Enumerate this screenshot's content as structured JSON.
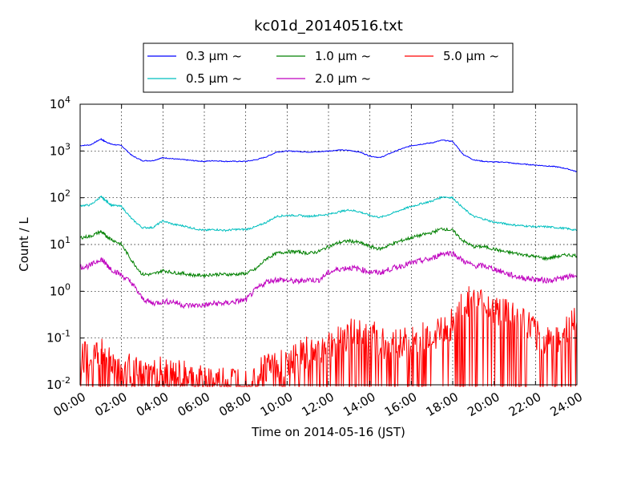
{
  "chart_data": {
    "type": "line",
    "title": "kc01d_20140516.txt",
    "xlabel": "Time on 2014-05-16 (JST)",
    "ylabel": "Count / L",
    "xlim": [
      0,
      24
    ],
    "ylim": [
      0.01,
      10000
    ],
    "yscale": "log",
    "grid": true,
    "legend_position": "top-center",
    "x_tick_labels": [
      "00:00",
      "02:00",
      "04:00",
      "06:00",
      "08:00",
      "10:00",
      "12:00",
      "14:00",
      "16:00",
      "18:00",
      "20:00",
      "22:00",
      "24:00"
    ],
    "y_ticks": [
      {
        "base": "10",
        "exp": "-2"
      },
      {
        "base": "10",
        "exp": "-1"
      },
      {
        "base": "10",
        "exp": "0"
      },
      {
        "base": "10",
        "exp": "1"
      },
      {
        "base": "10",
        "exp": "2"
      },
      {
        "base": "10",
        "exp": "3"
      },
      {
        "base": "10",
        "exp": "4"
      }
    ],
    "x": [
      0,
      0.5,
      1,
      1.2,
      1.5,
      2,
      2.5,
      3,
      3.5,
      4,
      4.5,
      5,
      5.5,
      6,
      6.5,
      7,
      7.5,
      8,
      8.5,
      9,
      9.5,
      10,
      10.5,
      11,
      11.5,
      12,
      12.5,
      13,
      13.5,
      14,
      14.5,
      15,
      15.5,
      16,
      16.5,
      17,
      17.5,
      18,
      18.5,
      19,
      19.5,
      20,
      20.5,
      21,
      21.5,
      22,
      22.5,
      23,
      23.5,
      24
    ],
    "series": [
      {
        "name": "0.3 μm ~",
        "color": "#0000ff",
        "values": [
          1300,
          1350,
          1800,
          1600,
          1400,
          1300,
          800,
          620,
          620,
          720,
          680,
          650,
          620,
          600,
          620,
          600,
          600,
          600,
          650,
          750,
          950,
          1000,
          980,
          950,
          960,
          1000,
          1050,
          1030,
          950,
          780,
          720,
          900,
          1100,
          1300,
          1400,
          1500,
          1700,
          1600,
          850,
          650,
          600,
          580,
          580,
          540,
          520,
          500,
          480,
          460,
          420,
          360
        ]
      },
      {
        "name": "0.5 μm ~",
        "color": "#00bfbf",
        "values": [
          68,
          70,
          105,
          90,
          70,
          65,
          35,
          23,
          23,
          32,
          27,
          25,
          22,
          20,
          21,
          20,
          21,
          21,
          24,
          30,
          40,
          42,
          42,
          40,
          42,
          44,
          50,
          55,
          50,
          42,
          38,
          45,
          55,
          65,
          75,
          85,
          105,
          100,
          60,
          40,
          35,
          30,
          28,
          26,
          25,
          24,
          24,
          23,
          22,
          20
        ]
      },
      {
        "name": "1.0 μm ~",
        "color": "#008000",
        "values": [
          14,
          15,
          19,
          16,
          13,
          10,
          4.5,
          2.3,
          2.3,
          2.8,
          2.5,
          2.4,
          2.2,
          2.2,
          2.3,
          2.3,
          2.3,
          2.4,
          3,
          5,
          6.5,
          7,
          7,
          6.5,
          7,
          9,
          11,
          12,
          11,
          9,
          8,
          10,
          12,
          14,
          16,
          18,
          22,
          20,
          12,
          9,
          9,
          8,
          7,
          6.5,
          6,
          5.5,
          5,
          5.5,
          6,
          5.8
        ]
      },
      {
        "name": "2.0 μm ~",
        "color": "#bf00bf",
        "values": [
          3.3,
          3.5,
          5,
          4,
          3,
          2.2,
          1.5,
          0.7,
          0.55,
          0.6,
          0.6,
          0.5,
          0.5,
          0.5,
          0.55,
          0.55,
          0.6,
          0.65,
          1.1,
          1.6,
          1.8,
          1.7,
          1.6,
          1.8,
          1.7,
          2.5,
          3,
          3.2,
          3,
          2.6,
          2.5,
          3,
          3.5,
          4,
          4.5,
          5,
          6.5,
          6.5,
          4.5,
          3.5,
          3.5,
          3,
          2.5,
          2.1,
          1.9,
          1.8,
          1.7,
          1.8,
          2,
          2.2
        ]
      },
      {
        "name": "5.0 μm ~",
        "color": "#ff0000",
        "values": [
          0.04,
          0.035,
          0.05,
          0.035,
          0.03,
          0.025,
          0.02,
          0.015,
          0.015,
          0.02,
          0.015,
          0.015,
          0.012,
          0.012,
          0.012,
          0.012,
          0.012,
          0.012,
          0.015,
          0.025,
          0.03,
          0.035,
          0.04,
          0.05,
          0.055,
          0.07,
          0.1,
          0.12,
          0.14,
          0.12,
          0.08,
          0.075,
          0.08,
          0.085,
          0.1,
          0.12,
          0.15,
          0.2,
          0.6,
          0.55,
          0.5,
          0.45,
          0.35,
          0.3,
          0.2,
          0.12,
          0.09,
          0.1,
          0.14,
          0.22
        ]
      }
    ]
  }
}
